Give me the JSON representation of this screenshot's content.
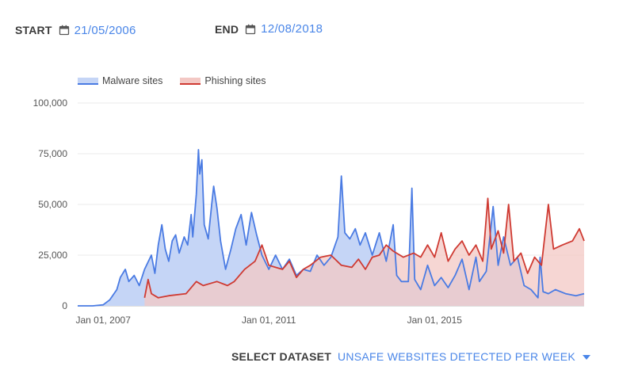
{
  "filters": {
    "start_label": "START",
    "start_value": "21/05/2006",
    "end_label": "END",
    "end_value": "12/08/2018",
    "calendar_icon": "calendar-icon"
  },
  "dataset": {
    "label": "SELECT DATASET",
    "value": "UNSAFE WEBSITES DETECTED PER WEEK",
    "dropdown_icon": "caret-down-icon"
  },
  "colors": {
    "malware_line": "#4a7be3",
    "malware_fill": "#c5d5f6",
    "phishing_line": "#cf3a32",
    "phishing_fill": "#f3c8c4",
    "accent": "#4a86e8"
  },
  "chart_data": {
    "type": "area",
    "title": "",
    "xlabel": "",
    "ylabel": "",
    "x_range": [
      "2006-05-21",
      "2018-08-12"
    ],
    "ylim": [
      0,
      100000
    ],
    "y_ticks": [
      "0",
      "25,000",
      "50,000",
      "75,000",
      "100,000"
    ],
    "x_ticks": [
      "Jan 01, 2007",
      "Jan 01, 2011",
      "Jan 01, 2015"
    ],
    "legend_position": "top-left",
    "grid": true,
    "series": [
      {
        "name": "Malware sites",
        "points": [
          [
            "2006-05-21",
            0
          ],
          [
            "2006-10-01",
            0
          ],
          [
            "2007-01-01",
            500
          ],
          [
            "2007-03-01",
            3000
          ],
          [
            "2007-05-01",
            8000
          ],
          [
            "2007-06-01",
            14000
          ],
          [
            "2007-07-15",
            18000
          ],
          [
            "2007-08-15",
            12000
          ],
          [
            "2007-10-01",
            15000
          ],
          [
            "2007-11-15",
            10000
          ],
          [
            "2008-01-01",
            18000
          ],
          [
            "2008-03-01",
            25000
          ],
          [
            "2008-04-01",
            16000
          ],
          [
            "2008-05-01",
            30000
          ],
          [
            "2008-06-01",
            40000
          ],
          [
            "2008-07-01",
            28000
          ],
          [
            "2008-08-01",
            22000
          ],
          [
            "2008-09-01",
            32000
          ],
          [
            "2008-10-01",
            35000
          ],
          [
            "2008-11-01",
            26000
          ],
          [
            "2008-12-15",
            34000
          ],
          [
            "2009-01-15",
            30000
          ],
          [
            "2009-02-15",
            45000
          ],
          [
            "2009-03-01",
            34000
          ],
          [
            "2009-04-01",
            55000
          ],
          [
            "2009-04-20",
            77000
          ],
          [
            "2009-05-01",
            65000
          ],
          [
            "2009-05-20",
            72000
          ],
          [
            "2009-06-10",
            40000
          ],
          [
            "2009-07-15",
            33000
          ],
          [
            "2009-08-15",
            50000
          ],
          [
            "2009-09-01",
            59000
          ],
          [
            "2009-10-01",
            48000
          ],
          [
            "2009-11-01",
            32000
          ],
          [
            "2009-12-15",
            18000
          ],
          [
            "2010-02-01",
            28000
          ],
          [
            "2010-03-15",
            38000
          ],
          [
            "2010-05-01",
            45000
          ],
          [
            "2010-06-15",
            30000
          ],
          [
            "2010-08-01",
            46000
          ],
          [
            "2010-09-15",
            35000
          ],
          [
            "2010-11-01",
            25000
          ],
          [
            "2011-01-01",
            18000
          ],
          [
            "2011-03-01",
            25000
          ],
          [
            "2011-05-01",
            18000
          ],
          [
            "2011-07-01",
            23000
          ],
          [
            "2011-09-01",
            15000
          ],
          [
            "2011-11-01",
            18000
          ],
          [
            "2012-01-01",
            17000
          ],
          [
            "2012-03-01",
            25000
          ],
          [
            "2012-05-01",
            20000
          ],
          [
            "2012-07-01",
            24000
          ],
          [
            "2012-09-01",
            34000
          ],
          [
            "2012-10-01",
            64000
          ],
          [
            "2012-11-01",
            36000
          ],
          [
            "2012-12-15",
            33000
          ],
          [
            "2013-02-01",
            38000
          ],
          [
            "2013-03-15",
            30000
          ],
          [
            "2013-05-01",
            36000
          ],
          [
            "2013-07-01",
            25000
          ],
          [
            "2013-09-01",
            36000
          ],
          [
            "2013-11-01",
            22000
          ],
          [
            "2014-01-01",
            40000
          ],
          [
            "2014-02-01",
            15000
          ],
          [
            "2014-03-15",
            12000
          ],
          [
            "2014-05-15",
            12000
          ],
          [
            "2014-06-15",
            58000
          ],
          [
            "2014-07-10",
            13000
          ],
          [
            "2014-09-01",
            8000
          ],
          [
            "2014-11-01",
            20000
          ],
          [
            "2015-01-01",
            10000
          ],
          [
            "2015-03-01",
            14000
          ],
          [
            "2015-05-01",
            9000
          ],
          [
            "2015-07-01",
            15000
          ],
          [
            "2015-09-01",
            23000
          ],
          [
            "2015-11-01",
            8000
          ],
          [
            "2016-01-01",
            24000
          ],
          [
            "2016-02-01",
            12000
          ],
          [
            "2016-04-01",
            17000
          ],
          [
            "2016-06-01",
            49000
          ],
          [
            "2016-07-15",
            20000
          ],
          [
            "2016-09-01",
            34000
          ],
          [
            "2016-11-01",
            20000
          ],
          [
            "2017-01-01",
            24000
          ],
          [
            "2017-03-01",
            10000
          ],
          [
            "2017-05-01",
            8000
          ],
          [
            "2017-07-01",
            4000
          ],
          [
            "2017-07-20",
            24000
          ],
          [
            "2017-08-15",
            7000
          ],
          [
            "2017-10-01",
            6000
          ],
          [
            "2017-12-01",
            8000
          ],
          [
            "2018-03-01",
            6000
          ],
          [
            "2018-06-01",
            5000
          ],
          [
            "2018-08-12",
            6000
          ]
        ]
      },
      {
        "name": "Phishing sites",
        "points": [
          [
            "2008-01-01",
            4000
          ],
          [
            "2008-02-01",
            13000
          ],
          [
            "2008-03-01",
            6000
          ],
          [
            "2008-05-01",
            4000
          ],
          [
            "2008-08-01",
            5000
          ],
          [
            "2009-01-01",
            6000
          ],
          [
            "2009-04-01",
            12000
          ],
          [
            "2009-06-01",
            10000
          ],
          [
            "2009-08-01",
            11000
          ],
          [
            "2009-10-01",
            12000
          ],
          [
            "2010-01-01",
            10000
          ],
          [
            "2010-03-01",
            12000
          ],
          [
            "2010-06-01",
            18000
          ],
          [
            "2010-09-01",
            22000
          ],
          [
            "2010-11-01",
            30000
          ],
          [
            "2011-01-01",
            20000
          ],
          [
            "2011-03-01",
            19000
          ],
          [
            "2011-05-01",
            18000
          ],
          [
            "2011-07-01",
            22000
          ],
          [
            "2011-09-01",
            14000
          ],
          [
            "2011-11-01",
            18000
          ],
          [
            "2012-01-01",
            20000
          ],
          [
            "2012-04-01",
            24000
          ],
          [
            "2012-07-01",
            25000
          ],
          [
            "2012-10-01",
            20000
          ],
          [
            "2013-01-01",
            19000
          ],
          [
            "2013-03-01",
            23000
          ],
          [
            "2013-05-01",
            18000
          ],
          [
            "2013-07-01",
            24000
          ],
          [
            "2013-09-01",
            25000
          ],
          [
            "2013-11-01",
            30000
          ],
          [
            "2014-01-01",
            27000
          ],
          [
            "2014-04-01",
            24000
          ],
          [
            "2014-07-01",
            26000
          ],
          [
            "2014-09-01",
            24000
          ],
          [
            "2014-11-01",
            30000
          ],
          [
            "2015-01-01",
            24000
          ],
          [
            "2015-03-01",
            36000
          ],
          [
            "2015-05-01",
            22000
          ],
          [
            "2015-07-01",
            28000
          ],
          [
            "2015-09-01",
            32000
          ],
          [
            "2015-11-01",
            25000
          ],
          [
            "2016-01-01",
            30000
          ],
          [
            "2016-03-01",
            22000
          ],
          [
            "2016-04-15",
            53000
          ],
          [
            "2016-05-15",
            28000
          ],
          [
            "2016-07-15",
            37000
          ],
          [
            "2016-09-01",
            26000
          ],
          [
            "2016-10-15",
            50000
          ],
          [
            "2016-12-01",
            22000
          ],
          [
            "2017-02-01",
            26000
          ],
          [
            "2017-04-01",
            16000
          ],
          [
            "2017-06-01",
            24000
          ],
          [
            "2017-08-01",
            20000
          ],
          [
            "2017-10-01",
            50000
          ],
          [
            "2017-11-15",
            28000
          ],
          [
            "2018-02-01",
            30000
          ],
          [
            "2018-05-01",
            32000
          ],
          [
            "2018-07-01",
            38000
          ],
          [
            "2018-08-12",
            32000
          ]
        ]
      }
    ]
  }
}
